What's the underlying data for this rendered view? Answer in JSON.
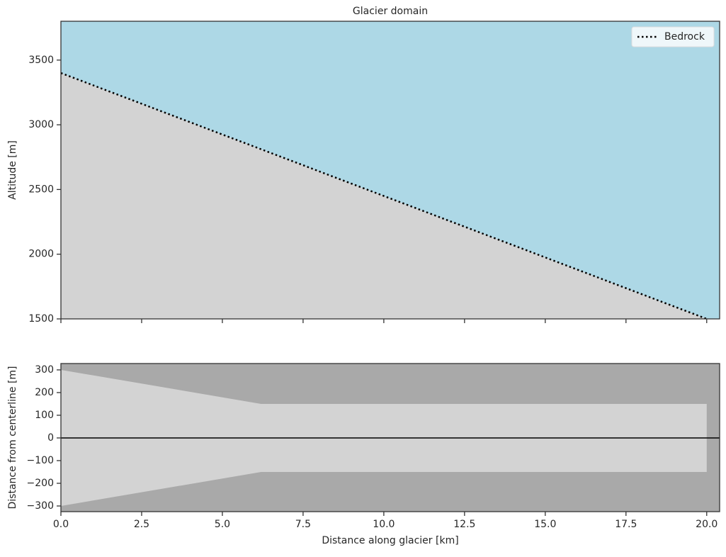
{
  "chart_data": [
    {
      "type": "line",
      "title": "Glacier domain",
      "ylabel": "Altitude [m]",
      "x": [
        0,
        20
      ],
      "series": [
        {
          "name": "Bedrock",
          "color": "#000000",
          "linestyle": "dotted",
          "values": [
            3400,
            1500
          ]
        }
      ],
      "fill_below": "#d3d3d3",
      "background": "#add8e6",
      "xlim": [
        0,
        20.4
      ],
      "ylim": [
        1500,
        3800
      ],
      "xticks": [
        0,
        2.5,
        5,
        7.5,
        10,
        12.5,
        15,
        17.5,
        20
      ],
      "yticks": [
        1500,
        2000,
        2500,
        3000,
        3500
      ],
      "legend": "upper right"
    },
    {
      "type": "area",
      "xlabel": "Distance along glacier [km]",
      "ylabel": "Distance from centerline [m]",
      "x": [
        0,
        6.2,
        20
      ],
      "series": [
        {
          "color": "#d3d3d3",
          "values": [
            300,
            150,
            150
          ]
        },
        {
          "color": "#d3d3d3",
          "values": [
            -300,
            -150,
            -150
          ]
        }
      ],
      "background": "#a9a9a9",
      "hline": 0,
      "xlim": [
        0,
        20.4
      ],
      "ylim": [
        -325,
        328
      ],
      "xticks": [
        {
          "value": 0,
          "label": "0.0"
        },
        2.5,
        {
          "value": 5,
          "label": "5.0"
        },
        7.5,
        {
          "value": 10,
          "label": "10.0"
        },
        12.5,
        {
          "value": 15,
          "label": "15.0"
        },
        17.5,
        {
          "value": 20,
          "label": "20.0"
        }
      ],
      "yticks": [
        {
          "value": -300,
          "label": "−300"
        },
        {
          "value": -200,
          "label": "−200"
        },
        {
          "value": -100,
          "label": "−100"
        },
        0,
        100,
        200,
        300
      ]
    }
  ]
}
